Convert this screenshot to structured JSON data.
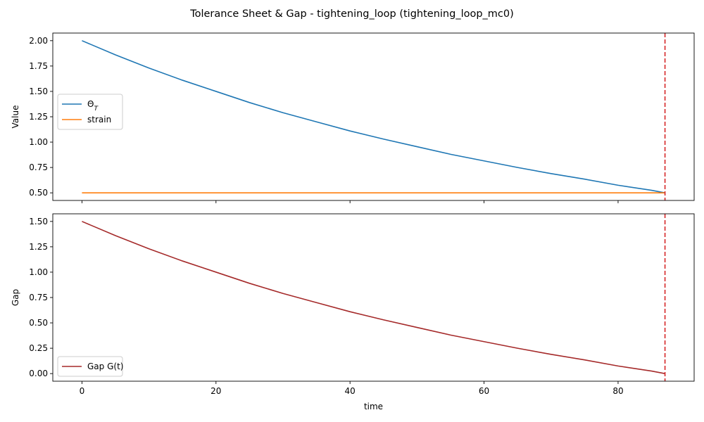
{
  "title": "Tolerance Sheet & Gap - tightening_loop (tightening_loop_mc0)",
  "chart_data": [
    {
      "type": "line",
      "xlabel": "",
      "ylabel": "Value",
      "xlim": [
        -4.35,
        91.35
      ],
      "ylim": [
        0.425,
        2.075
      ],
      "xticks": [
        0,
        20,
        40,
        60,
        80
      ],
      "yticks": [
        0.5,
        0.75,
        1.0,
        1.25,
        1.5,
        1.75,
        2.0
      ],
      "ytick_labels": [
        "0.50",
        "0.75",
        "1.00",
        "1.25",
        "1.50",
        "1.75",
        "2.00"
      ],
      "show_xtick_labels": false,
      "legend": "center-left",
      "vline": {
        "x": 87,
        "color": "#d62728",
        "style": "dashed"
      },
      "series": [
        {
          "name_prefix": "Θ",
          "name_sub": "T",
          "color": "#1f77b4",
          "x": [
            0,
            5,
            10,
            15,
            20,
            25,
            30,
            35,
            40,
            45,
            50,
            55,
            60,
            65,
            70,
            75,
            80,
            85,
            87
          ],
          "values": [
            2.0,
            1.86,
            1.73,
            1.61,
            1.5,
            1.39,
            1.29,
            1.2,
            1.11,
            1.03,
            0.955,
            0.88,
            0.815,
            0.75,
            0.69,
            0.635,
            0.575,
            0.525,
            0.5
          ]
        },
        {
          "name": "strain",
          "color": "#ff7f0e",
          "x": [
            0,
            87
          ],
          "values": [
            0.5,
            0.5
          ]
        }
      ]
    },
    {
      "type": "line",
      "xlabel": "time",
      "ylabel": "Gap",
      "xlim": [
        -4.35,
        91.35
      ],
      "ylim": [
        -0.075,
        1.575
      ],
      "xticks": [
        0,
        20,
        40,
        60,
        80
      ],
      "yticks": [
        0.0,
        0.25,
        0.5,
        0.75,
        1.0,
        1.25,
        1.5
      ],
      "ytick_labels": [
        "0.00",
        "0.25",
        "0.50",
        "0.75",
        "1.00",
        "1.25",
        "1.50"
      ],
      "show_xtick_labels": true,
      "legend": "lower-left",
      "vline": {
        "x": 87,
        "color": "#d62728",
        "style": "dashed"
      },
      "series": [
        {
          "name": "Gap G(t)",
          "color": "#a52a2a",
          "x": [
            0,
            5,
            10,
            15,
            20,
            25,
            30,
            35,
            40,
            45,
            50,
            55,
            60,
            65,
            70,
            75,
            80,
            85,
            87
          ],
          "values": [
            1.5,
            1.36,
            1.23,
            1.11,
            1.0,
            0.89,
            0.79,
            0.7,
            0.61,
            0.53,
            0.455,
            0.38,
            0.315,
            0.25,
            0.19,
            0.135,
            0.075,
            0.025,
            0.0
          ]
        }
      ]
    }
  ]
}
